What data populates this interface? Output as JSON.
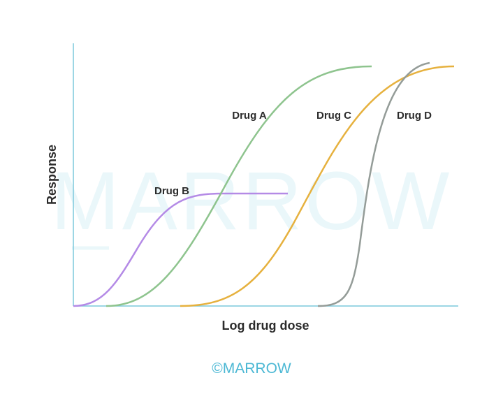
{
  "watermark": "MARROW",
  "axes": {
    "x_label": "Log drug dose",
    "y_label": "Response"
  },
  "curves": [
    {
      "label": "Drug A"
    },
    {
      "label": "Drug B"
    },
    {
      "label": "Drug C"
    },
    {
      "label": "Drug D"
    }
  ],
  "footer": "©MARROW"
}
